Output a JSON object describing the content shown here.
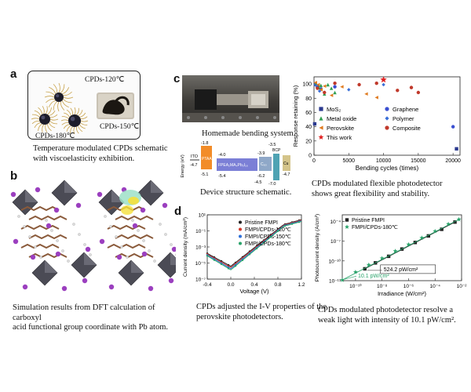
{
  "panels": {
    "a": {
      "label": "a",
      "tags": [
        "CPDs-120℃",
        "CPDs-150℃",
        "CPDs-180℃"
      ],
      "caption": "Temperature modulated CPDs schematic\nwith viscoelasticity exhibition."
    },
    "b": {
      "label": "b",
      "caption": "Simulation results from DFT calculation of carboxyl\nacid functional group coordinate with Pb atom."
    },
    "c": {
      "label": "c",
      "photo_caption": "Homemade bending system.",
      "band_caption": "Device structure schematic.",
      "band_axis": "Energy (eV)",
      "band_layers": [
        "ITO",
        "PTAA",
        "FPEA₂MA₄Pb₅I₁₆",
        "C₆₀",
        "BCP",
        "Cu"
      ],
      "band_values": [
        "-4.7",
        "-1.8",
        "-5.1",
        "-4.0",
        "-5.4",
        "-3.9",
        "-6.2",
        "-4.5",
        "-3.5",
        "-7.0",
        "-4.7"
      ]
    },
    "d": {
      "label": "d",
      "caption": "CPDs adjusted the I-V properties of the\nperovskite photodetectors."
    },
    "e": {
      "caption": "CPDs modulated flexible photodetector\nshows great flexibility and stability."
    },
    "f": {
      "caption": "CPDs modulated photodetector resolve a\nweak light with intensity of 10.1 pW/cm²."
    },
    "colors": {
      "box_border": "#222222",
      "ptaa": "#f28c28",
      "perovskite": "#7b7fd6",
      "c60": "#8fa8c8",
      "bcp": "#4fa3b3",
      "cu": "#d4c48a"
    }
  },
  "chart_data": [
    {
      "id": "bending",
      "type": "scatter",
      "title": "",
      "xlabel": "Bending cycles (times)",
      "ylabel": "Response retaining (%)",
      "xlim": [
        0,
        21000
      ],
      "ylim": [
        0,
        110
      ],
      "xticks": [
        0,
        5000,
        10000,
        15000,
        20000
      ],
      "yticks": [
        0,
        20,
        40,
        60,
        80,
        100
      ],
      "legend": [
        {
          "name": "MoS₂",
          "marker": "square",
          "color": "#2b3a8f"
        },
        {
          "name": "Graphene",
          "marker": "circle",
          "color": "#3a4fd1"
        },
        {
          "name": "Metal oxide",
          "marker": "triangle",
          "color": "#2e9e4f"
        },
        {
          "name": "Polymer",
          "marker": "diamond",
          "color": "#3a6fd8"
        },
        {
          "name": "Perovskite",
          "marker": "triangle-left",
          "color": "#e07a1f"
        },
        {
          "name": "Composite",
          "marker": "circle",
          "color": "#c0392b"
        },
        {
          "name": "This work",
          "marker": "star",
          "color": "#e02020"
        }
      ],
      "series": [
        {
          "name": "MoS₂",
          "points": [
            [
              100,
              44
            ],
            [
              500,
              97
            ],
            [
              20500,
              9
            ]
          ]
        },
        {
          "name": "Graphene",
          "points": [
            [
              200,
              99
            ],
            [
              1000,
              93
            ],
            [
              3000,
              96
            ],
            [
              20000,
              40
            ]
          ]
        },
        {
          "name": "Metal oxide",
          "points": [
            [
              300,
              101
            ],
            [
              700,
              95
            ],
            [
              1000,
              98
            ],
            [
              1500,
              86
            ],
            [
              2000,
              99
            ],
            [
              2500,
              94
            ],
            [
              3000,
              88
            ]
          ]
        },
        {
          "name": "Polymer",
          "points": [
            [
              400,
              98
            ],
            [
              800,
              90
            ],
            [
              5000,
              92
            ],
            [
              10000,
              99
            ]
          ]
        },
        {
          "name": "Perovskite",
          "points": [
            [
              200,
              102
            ],
            [
              600,
              99
            ],
            [
              1000,
              92
            ],
            [
              1500,
              97
            ],
            [
              2500,
              84
            ],
            [
              4000,
              96
            ],
            [
              7500,
              86
            ],
            [
              9000,
              81
            ]
          ]
        },
        {
          "name": "Composite",
          "points": [
            [
              500,
              94
            ],
            [
              1500,
              88
            ],
            [
              3000,
              101
            ],
            [
              6500,
              99
            ],
            [
              9000,
              101
            ],
            [
              12000,
              91
            ],
            [
              14000,
              95
            ],
            [
              15000,
              88
            ]
          ]
        },
        {
          "name": "This work",
          "points": [
            [
              10000,
              106
            ]
          ]
        }
      ]
    },
    {
      "id": "iv",
      "type": "scatter",
      "title": "",
      "xlabel": "Voltage (V)",
      "ylabel": "Current density (mA/cm²)",
      "xlim": [
        -0.4,
        1.2
      ],
      "ylog": true,
      "ylim_exp": [
        -7,
        1
      ],
      "xticks": [
        -0.4,
        0.0,
        0.4,
        0.8,
        1.2
      ],
      "yticks_exp": [
        1,
        -1,
        -3,
        -5,
        -7
      ],
      "ytick_labels": [
        "10¹",
        "10⁻¹",
        "10⁻³",
        "10⁻⁵",
        "10⁻⁷"
      ],
      "legend_position": "top-right",
      "series": [
        {
          "name": "Pristine FMPI",
          "color": "#222222"
        },
        {
          "name": "FMPI/CPDs-120℃",
          "color": "#d0392b"
        },
        {
          "name": "FMPI/CPDs-150℃",
          "color": "#2e6fd8"
        },
        {
          "name": "FMPI/CPDs-180℃",
          "color": "#2aa36b"
        }
      ]
    },
    {
      "id": "photocurrent",
      "type": "scatter",
      "title": "",
      "xlabel": "Irradiance (W/cm²)",
      "ylabel": "Photocurrent density (A/cm²)",
      "xlog": true,
      "ylog": true,
      "xlim_exp": [
        -11,
        -2
      ],
      "ylim_exp": [
        -13,
        -3
      ],
      "xticks_exp": [
        -10,
        -8,
        -6,
        -4,
        -2
      ],
      "xtick_labels": [
        "10⁻¹⁰",
        "10⁻⁸",
        "10⁻⁶",
        "10⁻⁴",
        "10⁻²"
      ],
      "yticks_exp": [
        -4,
        -7,
        -10,
        -13
      ],
      "ytick_labels": [
        "10⁻⁴",
        "10⁻⁷",
        "10⁻¹⁰",
        "10⁻¹³"
      ],
      "legend_position": "top-left",
      "annotations": [
        "524.2 pW/cm²",
        "10.1 pW/cm²"
      ],
      "series": [
        {
          "name": "Pristine FMPI",
          "color": "#222222",
          "marker": "square",
          "points": [
            [
              -9.3,
              -11.2
            ],
            [
              -8.5,
              -10.3
            ],
            [
              -7.5,
              -9.3
            ],
            [
              -6.5,
              -8.2
            ],
            [
              -5.5,
              -7.2
            ],
            [
              -4.5,
              -6.2
            ],
            [
              -3.5,
              -5.2
            ],
            [
              -2.5,
              -4.1
            ]
          ]
        },
        {
          "name": "FMPI/CPDs-180℃",
          "color": "#2aa36b",
          "marker": "star",
          "points": [
            [
              -11.0,
              -12.9
            ],
            [
              -10.0,
              -11.7
            ],
            [
              -9.0,
              -10.6
            ],
            [
              -8.0,
              -9.6
            ],
            [
              -7.0,
              -8.5
            ],
            [
              -6.0,
              -7.5
            ],
            [
              -5.0,
              -6.5
            ],
            [
              -4.0,
              -5.5
            ],
            [
              -3.0,
              -4.4
            ],
            [
              -2.2,
              -3.7
            ]
          ]
        }
      ]
    }
  ]
}
